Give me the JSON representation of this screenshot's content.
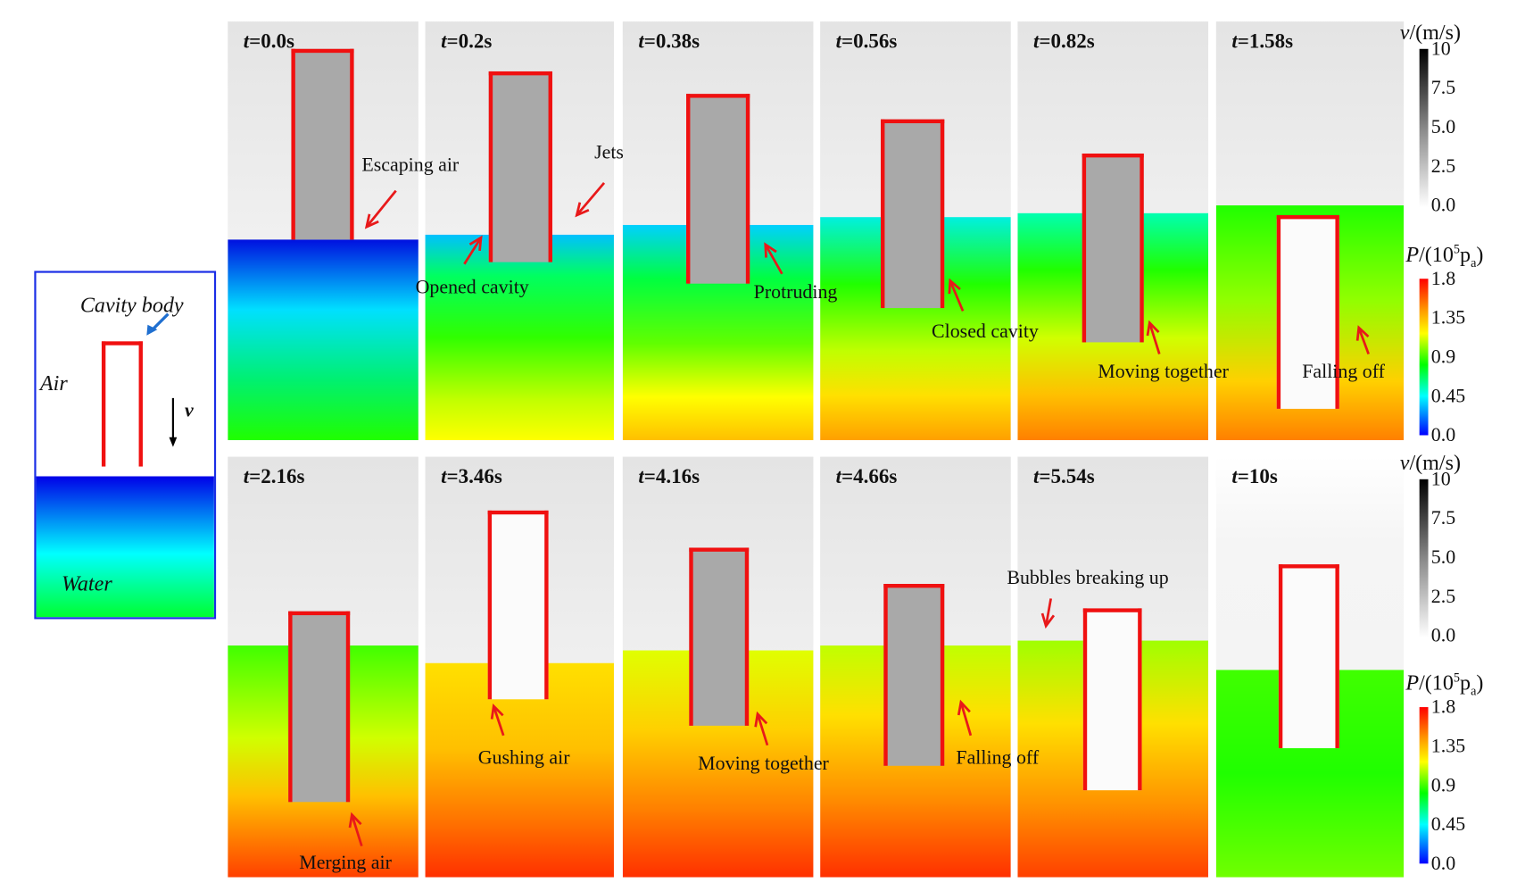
{
  "legend": {
    "cavity_label": "Cavity body",
    "air_label": "Air",
    "velocity_label": "v",
    "water_label": "Water",
    "colors": {
      "body": "#f01010",
      "frame": "#1a2ee6",
      "arrow": "#1f6fd0"
    }
  },
  "panels": [
    {
      "time_var": "t",
      "time": "=0.0s"
    },
    {
      "time_var": "t",
      "time": "=0.2s"
    },
    {
      "time_var": "t",
      "time": "=0.38s"
    },
    {
      "time_var": "t",
      "time": "=0.56s"
    },
    {
      "time_var": "t",
      "time": "=0.82s"
    },
    {
      "time_var": "t",
      "time": "=1.58s"
    },
    {
      "time_var": "t",
      "time": "=2.16s"
    },
    {
      "time_var": "t",
      "time": "=3.46s"
    },
    {
      "time_var": "t",
      "time": "=4.16s"
    },
    {
      "time_var": "t",
      "time": "=4.66s"
    },
    {
      "time_var": "t",
      "time": "=5.54s"
    },
    {
      "time_var": "t",
      "time": "=10s"
    }
  ],
  "annotations": [
    "Escaping air",
    "Jets",
    "Opened cavity",
    "Protruding",
    "Closed cavity",
    "Moving together",
    "Falling off",
    "Merging air",
    "Gushing air",
    "Moving together",
    "Falling off",
    "Bubbles breaking up"
  ],
  "colorbars": {
    "velocity": {
      "var": "v",
      "unit": "/(m/s)",
      "ticks": [
        "10",
        "7.5",
        "5.0",
        "2.5",
        "0.0"
      ],
      "range": [
        0,
        10
      ]
    },
    "pressure": {
      "var": "P",
      "unit": "/(10",
      "exp": "5",
      "unit_tail": "p",
      "sub": "a",
      "unit_close": ")",
      "ticks": [
        "1.8",
        "1.35",
        "0.9",
        "0.45",
        "0.0"
      ],
      "range": [
        0,
        1.8
      ]
    },
    "arrow_color": "#e8191a"
  }
}
